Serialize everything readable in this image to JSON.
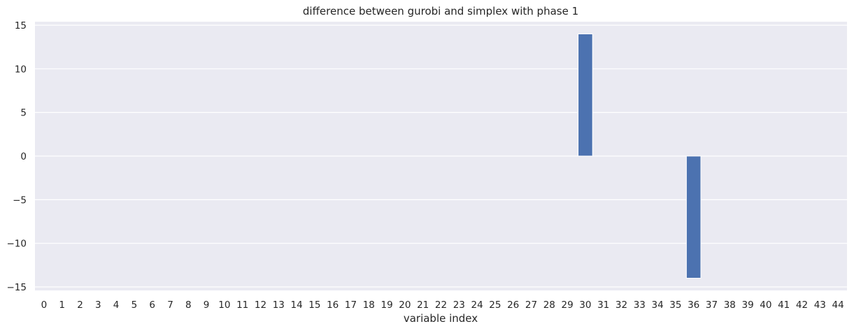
{
  "chart_data": {
    "type": "bar",
    "title": "difference between gurobi and simplex with phase 1",
    "xlabel": "variable index",
    "ylabel": "",
    "categories": [
      "0",
      "1",
      "2",
      "3",
      "4",
      "5",
      "6",
      "7",
      "8",
      "9",
      "10",
      "11",
      "12",
      "13",
      "14",
      "15",
      "16",
      "17",
      "18",
      "19",
      "20",
      "21",
      "22",
      "23",
      "24",
      "25",
      "26",
      "27",
      "28",
      "29",
      "30",
      "31",
      "32",
      "33",
      "34",
      "35",
      "36",
      "37",
      "38",
      "39",
      "40",
      "41",
      "42",
      "43",
      "44"
    ],
    "values": [
      0,
      0,
      0,
      0,
      0,
      0,
      0,
      0,
      0,
      0,
      0,
      0,
      0,
      0,
      0,
      0,
      0,
      0,
      0,
      0,
      0,
      0,
      0,
      0,
      0,
      0,
      0,
      0,
      0,
      0,
      14,
      0,
      0,
      0,
      0,
      0,
      -14,
      0,
      0,
      0,
      0,
      0,
      0,
      0,
      0
    ],
    "ylim": [
      -15.4,
      15.4
    ],
    "yticks": [
      15,
      10,
      5,
      0,
      -5,
      -10,
      -15
    ],
    "ytick_labels": [
      "15",
      "10",
      "5",
      "0",
      "−5",
      "−10",
      "−15"
    ],
    "grid": true,
    "bar_color": "#4c72b0",
    "background_color": "#eaeaf2",
    "grid_color": "#ffffff"
  }
}
